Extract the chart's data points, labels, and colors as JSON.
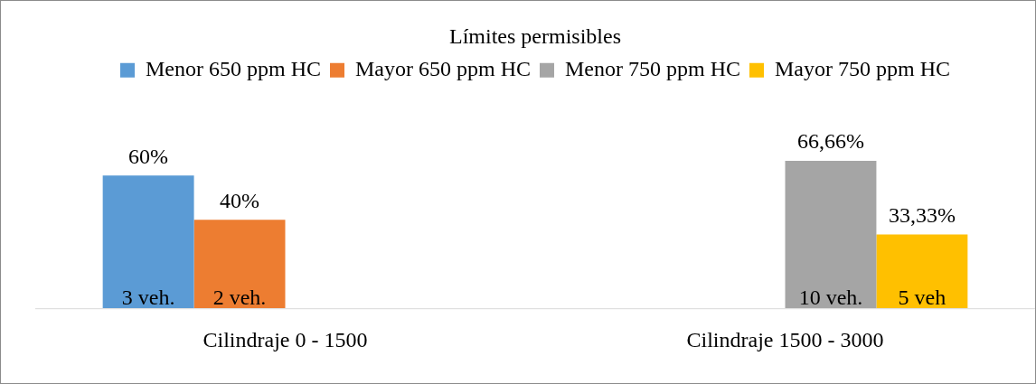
{
  "chart_data": {
    "type": "bar",
    "title": "Límites permisibles",
    "categories": [
      "Cilindraje 0 - 1500",
      "Cilindraje 1500 - 3000"
    ],
    "series": [
      {
        "name": "Menor 650 ppm HC",
        "color": "#5b9bd5",
        "values": [
          60,
          null
        ],
        "value_labels": [
          "60%",
          null
        ]
      },
      {
        "name": "Mayor 650 ppm HC",
        "color": "#ed7d31",
        "values": [
          40,
          null
        ],
        "value_labels": [
          "40%",
          null
        ]
      },
      {
        "name": "Menor 750 ppm HC",
        "color": "#a5a5a5",
        "values": [
          null,
          66.66
        ],
        "value_labels": [
          null,
          "66,66%"
        ]
      },
      {
        "name": "Mayor 750 ppm HC",
        "color": "#ffc000",
        "values": [
          null,
          33.33
        ],
        "value_labels": [
          null,
          "33,33%"
        ]
      }
    ],
    "annotations": [
      "3 veh.",
      "2 veh.",
      "10 veh.",
      "5 veh"
    ],
    "legend": "top",
    "grid": false
  }
}
